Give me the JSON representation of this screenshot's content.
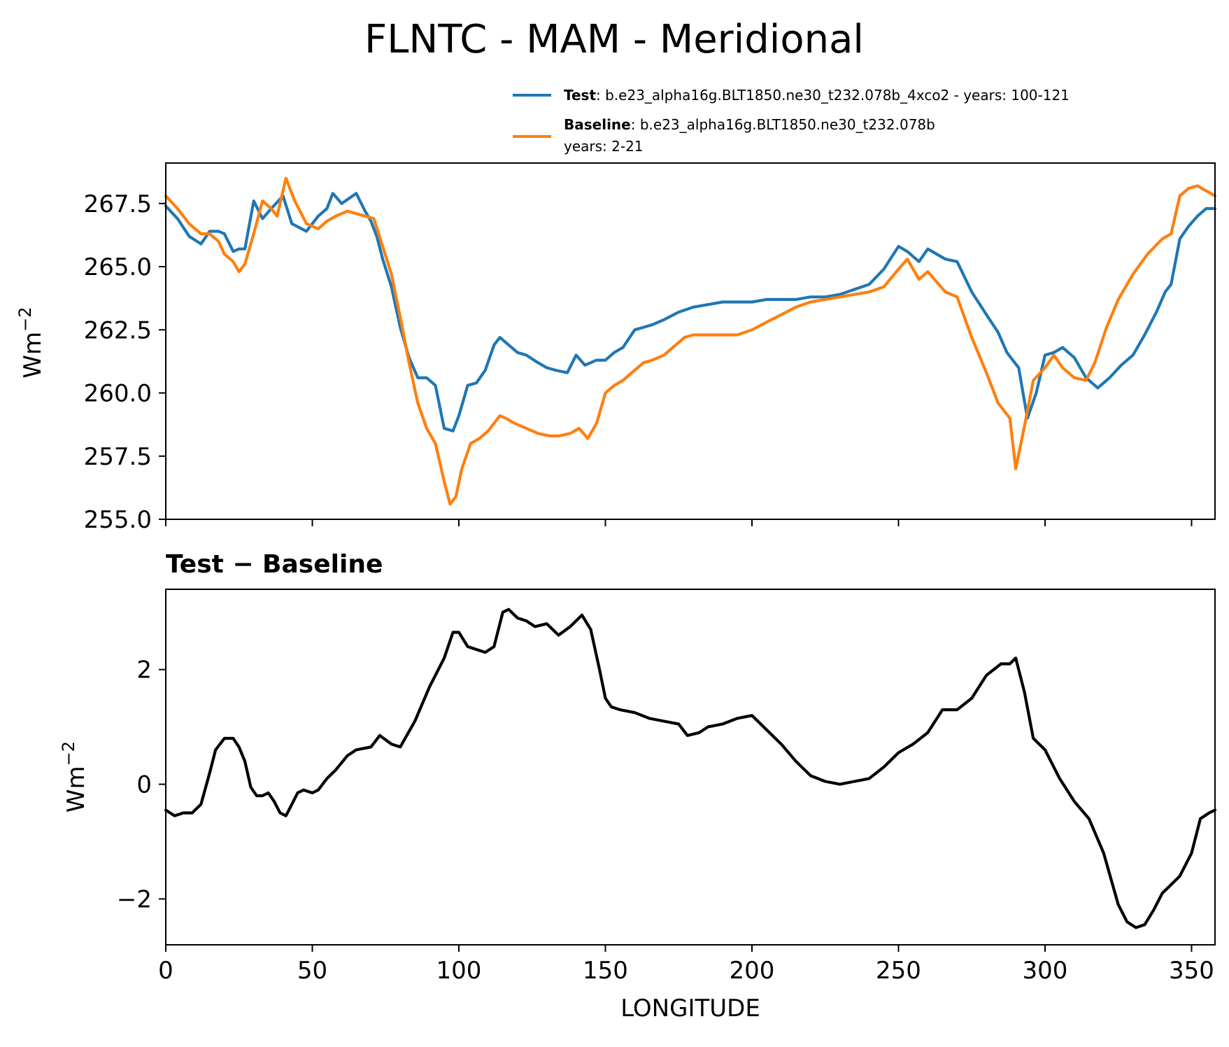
{
  "title": "FLNTC - MAM - Meridional",
  "legend": {
    "test": {
      "bold": "Test",
      "text": ": b.e23_alpha16g.BLT1850.ne30_t232.078b_4xco2 - years: 100-121",
      "color": "#1f77b4"
    },
    "baseline": {
      "bold": "Baseline",
      "text": ": b.e23_alpha16g.BLT1850.ne30_t232.078b",
      "line2": "years: 2-21",
      "color": "#ff7f0e"
    }
  },
  "chart_data": [
    {
      "type": "line",
      "title": "",
      "xlabel": "",
      "ylabel": "Wm",
      "ylabel_sup": "−2",
      "xlim": [
        0,
        358
      ],
      "ylim": [
        255.0,
        269.1
      ],
      "yticks": [
        "255.0",
        "257.5",
        "260.0",
        "262.5",
        "265.0",
        "267.5"
      ],
      "ytick_values": [
        255.0,
        257.5,
        260.0,
        262.5,
        265.0,
        267.5
      ],
      "xticks": [
        0,
        50,
        100,
        150,
        200,
        250,
        300,
        350
      ],
      "grid": false,
      "legend_placement": "above-right",
      "series": [
        {
          "name": "Test",
          "color": "#1f77b4",
          "x": [
            0,
            4,
            8,
            12,
            15,
            18,
            20,
            23,
            25,
            27,
            30,
            33,
            36,
            40,
            43,
            48,
            52,
            55,
            57,
            60,
            65,
            68,
            70,
            72,
            74,
            77,
            80,
            83,
            86,
            89,
            92,
            95,
            98,
            100,
            103,
            106,
            109,
            112,
            114,
            116,
            120,
            123,
            127,
            130,
            133,
            137,
            140,
            143,
            147,
            150,
            153,
            156,
            160,
            163,
            166,
            170,
            175,
            180,
            185,
            190,
            195,
            200,
            205,
            210,
            215,
            220,
            225,
            230,
            235,
            240,
            245,
            250,
            253,
            257,
            260,
            263,
            266,
            270,
            275,
            280,
            284,
            287,
            289,
            291,
            294,
            297,
            300,
            303,
            306,
            310,
            314,
            318,
            322,
            326,
            330,
            334,
            338,
            341,
            343,
            346,
            349,
            352,
            355,
            358
          ],
          "y": [
            267.4,
            266.9,
            266.2,
            265.9,
            266.4,
            266.4,
            266.3,
            265.6,
            265.7,
            265.7,
            267.6,
            266.9,
            267.3,
            267.8,
            266.7,
            266.4,
            267.0,
            267.3,
            267.9,
            267.5,
            267.9,
            267.2,
            266.8,
            266.2,
            265.3,
            264.2,
            262.6,
            261.4,
            260.6,
            260.6,
            260.3,
            258.6,
            258.5,
            259.1,
            260.3,
            260.4,
            260.9,
            261.9,
            262.2,
            262.0,
            261.6,
            261.5,
            261.2,
            261.0,
            260.9,
            260.8,
            261.5,
            261.1,
            261.3,
            261.3,
            261.6,
            261.8,
            262.5,
            262.6,
            262.7,
            262.9,
            263.2,
            263.4,
            263.5,
            263.6,
            263.6,
            263.6,
            263.7,
            263.7,
            263.7,
            263.8,
            263.8,
            263.9,
            264.1,
            264.3,
            264.9,
            265.8,
            265.6,
            265.2,
            265.7,
            265.5,
            265.3,
            265.2,
            264.0,
            263.1,
            262.4,
            261.6,
            261.3,
            261.0,
            259.0,
            260.0,
            261.5,
            261.6,
            261.8,
            261.4,
            260.6,
            260.2,
            260.6,
            261.1,
            261.5,
            262.3,
            263.2,
            264.0,
            264.3,
            266.1,
            266.6,
            267.0,
            267.3,
            267.3
          ]
        },
        {
          "name": "Baseline",
          "color": "#ff7f0e",
          "x": [
            0,
            4,
            8,
            12,
            15,
            18,
            20,
            23,
            25,
            27,
            30,
            33,
            36,
            38,
            41,
            44,
            48,
            52,
            55,
            58,
            62,
            65,
            68,
            71,
            74,
            77,
            80,
            83,
            86,
            89,
            92,
            95,
            97,
            99,
            101,
            104,
            107,
            110,
            114,
            116,
            119,
            123,
            127,
            131,
            134,
            138,
            141,
            144,
            147,
            150,
            153,
            156,
            160,
            163,
            166,
            170,
            173,
            177,
            180,
            185,
            190,
            195,
            200,
            205,
            210,
            215,
            220,
            225,
            230,
            235,
            240,
            245,
            250,
            253,
            257,
            260,
            263,
            266,
            270,
            275,
            280,
            284,
            288,
            290,
            293,
            296,
            300,
            303,
            306,
            310,
            314,
            317,
            321,
            325,
            330,
            335,
            340,
            343,
            346,
            349,
            352,
            355,
            358
          ],
          "y": [
            267.8,
            267.3,
            266.7,
            266.3,
            266.3,
            266.0,
            265.5,
            265.2,
            264.8,
            265.1,
            266.3,
            267.6,
            267.3,
            267.0,
            268.5,
            267.6,
            266.7,
            266.5,
            266.8,
            267.0,
            267.2,
            267.1,
            267.0,
            266.9,
            265.8,
            264.7,
            263.0,
            261.2,
            259.6,
            258.6,
            258.0,
            256.5,
            255.6,
            255.9,
            257.0,
            258.0,
            258.2,
            258.5,
            259.1,
            259.0,
            258.8,
            258.6,
            258.4,
            258.3,
            258.3,
            258.4,
            258.6,
            258.2,
            258.8,
            260.0,
            260.3,
            260.5,
            260.9,
            261.2,
            261.3,
            261.5,
            261.8,
            262.2,
            262.3,
            262.3,
            262.3,
            262.3,
            262.5,
            262.8,
            263.1,
            263.4,
            263.6,
            263.7,
            263.8,
            263.9,
            264.0,
            264.2,
            264.9,
            265.3,
            264.5,
            264.8,
            264.4,
            264.0,
            263.8,
            262.2,
            260.8,
            259.6,
            259.0,
            257.0,
            258.7,
            260.5,
            261.0,
            261.5,
            261.0,
            260.6,
            260.5,
            261.2,
            262.6,
            263.7,
            264.7,
            265.5,
            266.1,
            266.3,
            267.8,
            268.1,
            268.2,
            268.0,
            267.8
          ]
        }
      ]
    },
    {
      "type": "line",
      "title": "Test − Baseline",
      "xlabel": "LONGITUDE",
      "ylabel": "Wm",
      "ylabel_sup": "−2",
      "xlim": [
        0,
        358
      ],
      "ylim": [
        -2.8,
        3.4
      ],
      "yticks": [
        "−2",
        "0",
        "2"
      ],
      "ytick_values": [
        -2,
        0,
        2
      ],
      "xticks": [
        "0",
        "50",
        "100",
        "150",
        "200",
        "250",
        "300",
        "350"
      ],
      "xtick_values": [
        0,
        50,
        100,
        150,
        200,
        250,
        300,
        350
      ],
      "grid": false,
      "series": [
        {
          "name": "Test − Baseline",
          "color": "#000000",
          "x": [
            0,
            3,
            6,
            9,
            12,
            15,
            17,
            20,
            23,
            25,
            27,
            29,
            31,
            33,
            35,
            37,
            39,
            41,
            43,
            45,
            47,
            50,
            52,
            55,
            58,
            62,
            65,
            70,
            73,
            77,
            80,
            85,
            90,
            95,
            98,
            100,
            103,
            106,
            109,
            112,
            115,
            117,
            120,
            123,
            126,
            130,
            134,
            138,
            142,
            145,
            148,
            150,
            152,
            155,
            160,
            165,
            170,
            175,
            178,
            182,
            185,
            190,
            195,
            200,
            205,
            210,
            215,
            220,
            225,
            230,
            235,
            240,
            245,
            250,
            255,
            260,
            265,
            270,
            275,
            280,
            285,
            288,
            290,
            293,
            296,
            300,
            305,
            310,
            315,
            320,
            325,
            328,
            331,
            334,
            337,
            340,
            343,
            346,
            350,
            353,
            356,
            358
          ],
          "y": [
            -0.45,
            -0.55,
            -0.5,
            -0.5,
            -0.35,
            0.2,
            0.6,
            0.8,
            0.8,
            0.65,
            0.4,
            -0.05,
            -0.2,
            -0.2,
            -0.15,
            -0.3,
            -0.5,
            -0.55,
            -0.35,
            -0.15,
            -0.1,
            -0.15,
            -0.1,
            0.1,
            0.25,
            0.5,
            0.6,
            0.65,
            0.85,
            0.7,
            0.65,
            1.1,
            1.7,
            2.2,
            2.65,
            2.65,
            2.4,
            2.35,
            2.3,
            2.4,
            3.0,
            3.05,
            2.9,
            2.85,
            2.75,
            2.8,
            2.6,
            2.75,
            2.95,
            2.7,
            2.0,
            1.5,
            1.35,
            1.3,
            1.25,
            1.15,
            1.1,
            1.05,
            0.85,
            0.9,
            1.0,
            1.05,
            1.15,
            1.2,
            0.95,
            0.7,
            0.4,
            0.15,
            0.05,
            0.0,
            0.05,
            0.1,
            0.3,
            0.55,
            0.7,
            0.9,
            1.3,
            1.3,
            1.5,
            1.9,
            2.1,
            2.1,
            2.2,
            1.6,
            0.8,
            0.6,
            0.1,
            -0.3,
            -0.6,
            -1.2,
            -2.1,
            -2.4,
            -2.5,
            -2.45,
            -2.2,
            -1.9,
            -1.75,
            -1.6,
            -1.2,
            -0.6,
            -0.5,
            -0.45
          ]
        }
      ]
    }
  ]
}
